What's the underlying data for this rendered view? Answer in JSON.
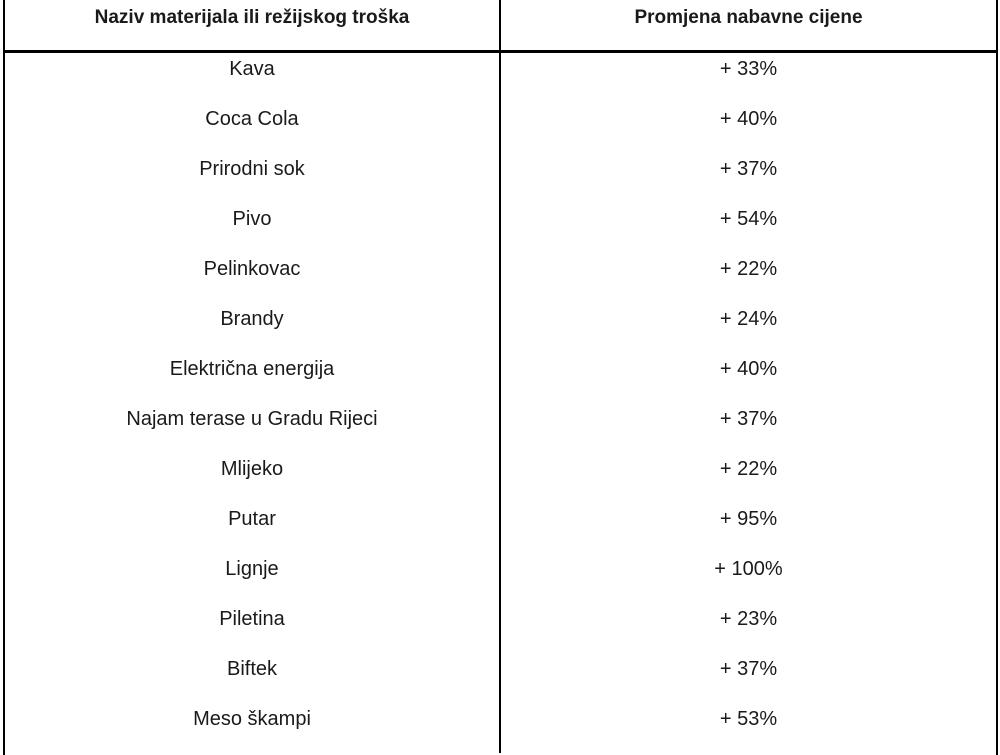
{
  "table": {
    "headers": {
      "name": "Naziv materijala ili režijskog troška",
      "change": "Promjena nabavne cijene"
    },
    "rows": [
      {
        "name": "Kava",
        "change": "+ 33%"
      },
      {
        "name": "Coca Cola",
        "change": "+ 40%"
      },
      {
        "name": "Prirodni sok",
        "change": "+ 37%"
      },
      {
        "name": "Pivo",
        "change": "+ 54%"
      },
      {
        "name": "Pelinkovac",
        "change": "+ 22%"
      },
      {
        "name": "Brandy",
        "change": "+ 24%"
      },
      {
        "name": "Električna energija",
        "change": "+ 40%"
      },
      {
        "name": "Najam terase u Gradu Rijeci",
        "change": "+ 37%"
      },
      {
        "name": "Mlijeko",
        "change": "+ 22%"
      },
      {
        "name": "Putar",
        "change": "+ 95%"
      },
      {
        "name": "Lignje",
        "change": "+ 100%"
      },
      {
        "name": "Piletina",
        "change": "+ 23%"
      },
      {
        "name": "Biftek",
        "change": "+ 37%"
      },
      {
        "name": "Meso škampi",
        "change": "+ 53%"
      }
    ]
  }
}
